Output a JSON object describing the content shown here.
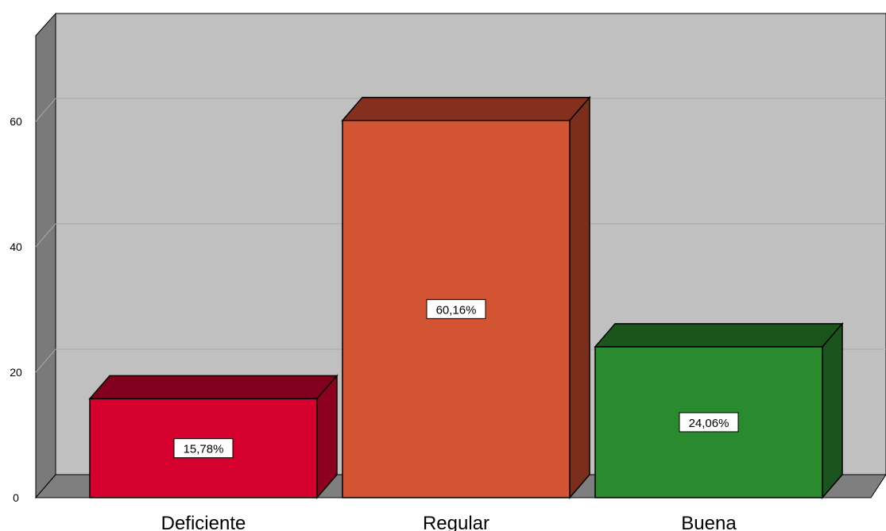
{
  "chart_data": {
    "type": "bar",
    "categories": [
      "Deficiente",
      "Regular",
      "Buena"
    ],
    "values": [
      15.78,
      60.16,
      24.06
    ],
    "data_labels": [
      "15,78%",
      "60,16%",
      "24,06%"
    ],
    "ylim": [
      0,
      70
    ],
    "yticks": [
      0,
      20,
      40,
      60
    ],
    "ytick_labels": [
      "0",
      "20",
      "40",
      "60"
    ],
    "grid": true,
    "three_d": true,
    "colors": {
      "bars": [
        "#d5002e",
        "#d35433",
        "#298a2e"
      ],
      "bar_tops": [
        "#80001d",
        "#852f1f",
        "#1a561a"
      ],
      "bar_sides": [
        "#8d001f",
        "#7c2e1d",
        "#1b531c"
      ],
      "plot_background": "#c0c0c0",
      "left_wall": "#7a7a7a",
      "floor": "#7f7f7f",
      "gridline": "#a9a9a9"
    }
  }
}
